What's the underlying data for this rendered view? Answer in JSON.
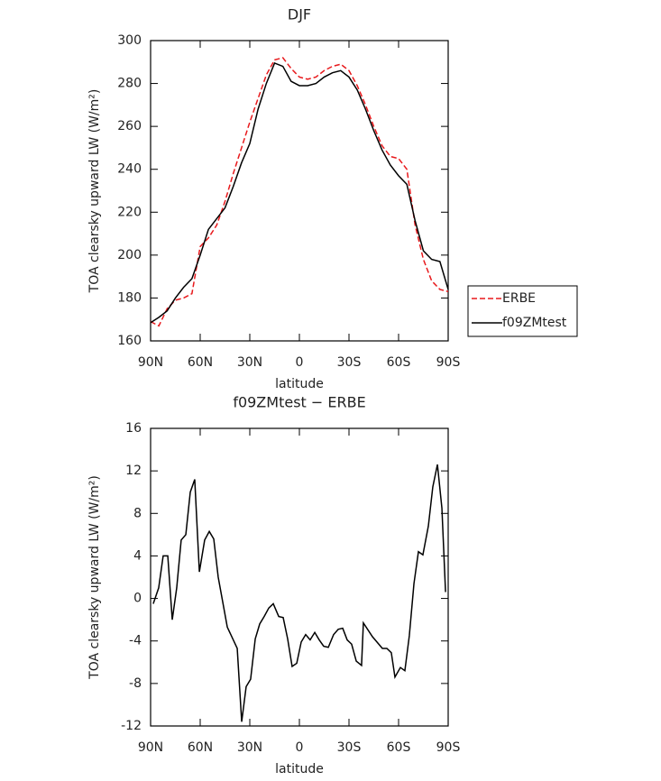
{
  "chart_data": [
    {
      "type": "line",
      "title": "DJF",
      "x_label": "latitude",
      "y_label": "TOA clearsky upward LW (W/m²)",
      "x": [
        90,
        85,
        80,
        75,
        70,
        65,
        60,
        55,
        50,
        45,
        40,
        35,
        30,
        25,
        20,
        15,
        10,
        5,
        0,
        -5,
        -10,
        -15,
        -20,
        -25,
        -30,
        -35,
        -40,
        -45,
        -50,
        -55,
        -60,
        -65,
        -70,
        -75,
        -80,
        -85,
        -90
      ],
      "series": [
        {
          "name": "ERBE",
          "color": "#e8191c",
          "line_style": "dashed",
          "values": [
            169,
            167,
            175,
            179,
            180,
            182,
            204,
            208,
            214,
            225,
            238,
            250,
            262,
            273,
            284,
            291,
            292,
            287,
            283,
            282,
            283,
            286,
            288,
            289,
            286,
            279,
            270,
            260,
            251,
            246,
            245,
            240,
            214,
            198,
            188,
            184,
            183
          ]
        },
        {
          "name": "f09ZMtest",
          "color": "#000000",
          "line_style": "solid",
          "values": [
            168.5,
            171,
            174,
            180,
            185,
            189,
            200,
            212,
            217,
            222,
            232,
            243,
            252,
            268,
            280,
            289.5,
            288,
            281,
            279,
            279,
            280,
            283,
            285,
            286,
            283,
            277,
            268,
            258,
            249,
            242,
            237,
            233,
            216,
            202,
            198,
            197,
            184
          ]
        }
      ],
      "xlim": [
        90,
        -90
      ],
      "xticks": [
        {
          "value": 90,
          "label": "90N"
        },
        {
          "value": 60,
          "label": "60N"
        },
        {
          "value": 30,
          "label": "30N"
        },
        0,
        {
          "value": -30,
          "label": "30S"
        },
        {
          "value": -60,
          "label": "60S"
        },
        {
          "value": -90,
          "label": "90S"
        }
      ],
      "ylim": [
        160,
        300
      ],
      "yticks": [
        160,
        180,
        200,
        220,
        240,
        260,
        280,
        300
      ],
      "legend": "outside right"
    },
    {
      "type": "line",
      "title": "f09ZMtest − ERBE",
      "x_label": "latitude",
      "y_label": "TOA clearsky upward LW (W/m²)",
      "x": [
        88.4,
        85.1,
        82.4,
        79.6,
        76.9,
        74.2,
        71.5,
        68.7,
        66.0,
        63.3,
        60.5,
        57.3,
        54.5,
        51.8,
        49.1,
        43.6,
        37.6,
        34.9,
        32.2,
        29.5,
        26.7,
        24.0,
        21.3,
        18.5,
        15.8,
        12.5,
        9.8,
        7.1,
        4.4,
        1.6,
        -1.1,
        -3.8,
        -6.5,
        -9.3,
        -12.0,
        -14.7,
        -17.5,
        -20.7,
        -23.5,
        -26.2,
        -28.9,
        -31.6,
        -34.4,
        -37.6,
        -38.7,
        -44.2,
        -50.2,
        -52.9,
        -55.6,
        -57.8,
        -61.1,
        -63.8,
        -66.5,
        -69.3,
        -72.0,
        -74.7,
        -78.0,
        -80.7,
        -83.5,
        -86.2,
        -88.4
      ],
      "values": [
        -0.5,
        1,
        4,
        4,
        -2,
        1,
        5.5,
        6,
        10,
        11.2,
        2.5,
        5.5,
        6.3,
        5.6,
        2,
        -2.7,
        -4.7,
        -11.6,
        -8.3,
        -7.6,
        -3.8,
        -2.4,
        -1.7,
        -0.9,
        -0.5,
        -1.7,
        -1.8,
        -3.8,
        -6.4,
        -6.1,
        -4.1,
        -3.4,
        -3.9,
        -3.2,
        -3.9,
        -4.5,
        -4.6,
        -3.4,
        -2.9,
        -2.8,
        -3.9,
        -4.3,
        -5.9,
        -6.3,
        -2.3,
        -3.6,
        -4.7,
        -4.7,
        -5.1,
        -7.4,
        -6.5,
        -6.8,
        -3.5,
        1.4,
        4.4,
        4.1,
        6.8,
        10.5,
        12.6,
        8.5,
        0.6
      ],
      "color": "#000000",
      "xlim": [
        90,
        -90
      ],
      "xticks": [
        {
          "value": 90,
          "label": "90N"
        },
        {
          "value": 60,
          "label": "60N"
        },
        {
          "value": 30,
          "label": "30N"
        },
        0,
        {
          "value": -30,
          "label": "30S"
        },
        {
          "value": -60,
          "label": "60S"
        },
        {
          "value": -90,
          "label": "90S"
        }
      ],
      "ylim": [
        -12,
        16
      ],
      "yticks": [
        -12,
        -8,
        -4,
        0,
        4,
        8,
        12,
        16
      ]
    }
  ]
}
